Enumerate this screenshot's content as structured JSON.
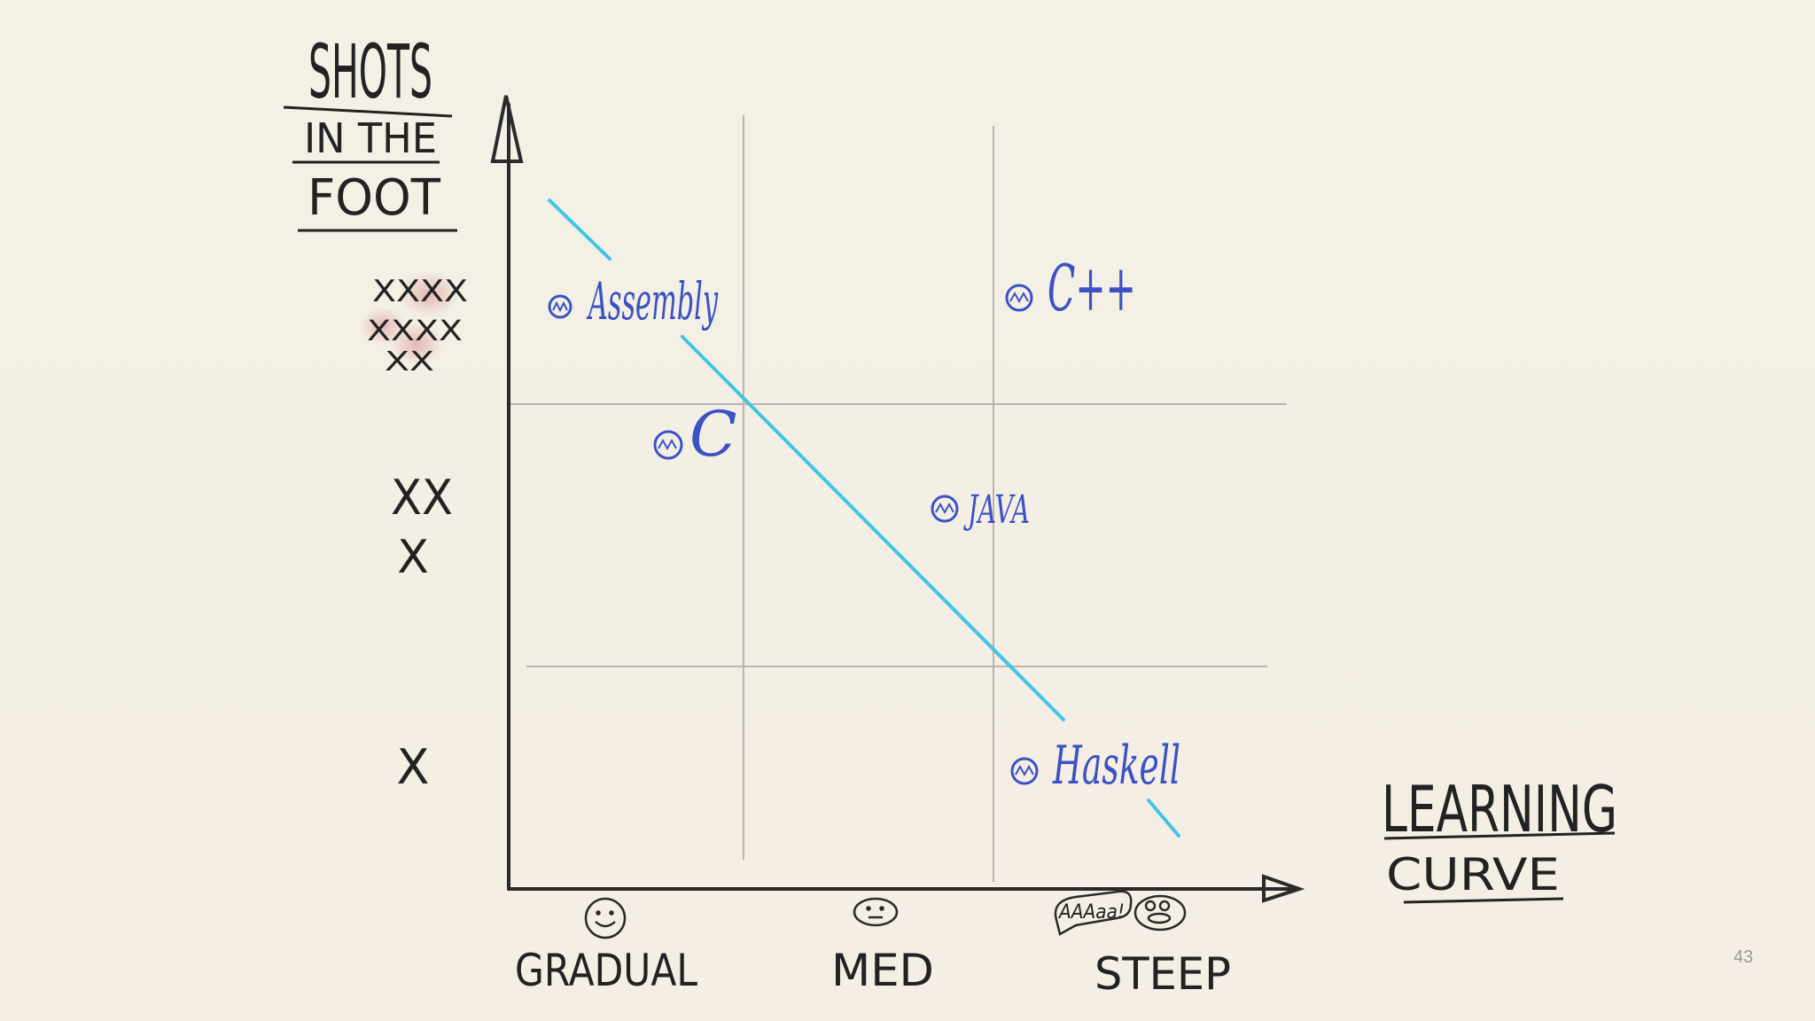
{
  "y_axis_title": {
    "line1": "SHOTS",
    "line2": "IN THE",
    "line3": "FOOT"
  },
  "x_axis_title": {
    "line1": "LEARNING",
    "line2": "CURVE"
  },
  "y_ticks": [
    {
      "label": "XXXX XXXX XX",
      "level": "high"
    },
    {
      "label": "XX X",
      "level": "medium"
    },
    {
      "label": "X",
      "level": "low"
    }
  ],
  "x_ticks": [
    {
      "label": "GRADUAL",
      "face": "smiling-face"
    },
    {
      "label": "MED",
      "face": "neutral-face"
    },
    {
      "label": "STEEP",
      "face": "screaming-face",
      "bubble": "AAAaa!"
    }
  ],
  "languages": [
    {
      "name": "Assembly",
      "learning": "gradual",
      "shots": "high"
    },
    {
      "name": "C++",
      "learning": "steep",
      "shots": "high"
    },
    {
      "name": "C",
      "learning": "gradual",
      "shots": "medium-high"
    },
    {
      "name": "JAVA",
      "learning": "medium",
      "shots": "medium"
    },
    {
      "name": "Haskell",
      "learning": "steep",
      "shots": "low"
    }
  ],
  "colors": {
    "ink": "#222222",
    "blue": "#3b52c4",
    "trend": "#3fc6e6",
    "grid": "#b9b5ac",
    "highlight": "#d98a8a"
  },
  "slide_number": "43"
}
